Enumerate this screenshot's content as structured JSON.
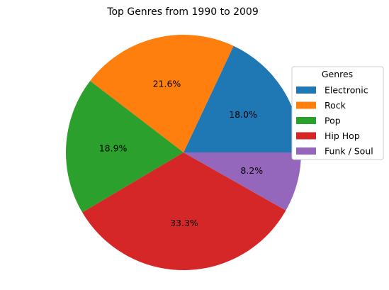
{
  "chart_data": {
    "type": "pie",
    "title": "Top Genres from 1990 to 2009",
    "legend_title": "Genres",
    "legend_position": "right",
    "slices": [
      {
        "label": "Electronic",
        "percent": 18.0,
        "color": "#1f77b4"
      },
      {
        "label": "Rock",
        "percent": 21.6,
        "color": "#ff7f0e"
      },
      {
        "label": "Pop",
        "percent": 18.9,
        "color": "#2ca02c"
      },
      {
        "label": "Hip Hop",
        "percent": 33.3,
        "color": "#d62728"
      },
      {
        "label": "Funk / Soul",
        "percent": 8.2,
        "color": "#9467bd"
      }
    ],
    "percent_labels": [
      "18.0%",
      "21.6%",
      "18.9%",
      "33.3%",
      "8.2%"
    ]
  }
}
